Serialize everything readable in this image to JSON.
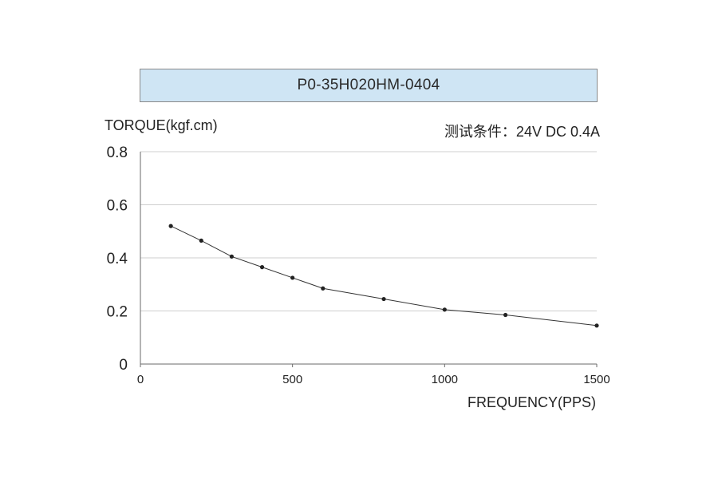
{
  "colors": {
    "title_fill": "#cfe5f4",
    "grid": "#cfcfcf",
    "axis": "#6a6a6a",
    "line": "#333333",
    "marker": "#222222"
  },
  "chart_data": {
    "type": "line",
    "title": "P0-35H020HM-0404",
    "subtitle": "测试条件：24V DC   0.4A",
    "ylabel": "TORQUE(kgf.cm)",
    "xlabel": "FREQUENCY(PPS)",
    "xlim": [
      0,
      1500
    ],
    "ylim": [
      0,
      0.8
    ],
    "xticks": [
      0,
      500,
      1000,
      1500
    ],
    "yticks": [
      0,
      0.2,
      0.4,
      0.6,
      0.8
    ],
    "ytick_labels": [
      "0",
      "0.2",
      "0.4",
      "0.6",
      "0.8"
    ],
    "grid": "horizontal",
    "series": [
      {
        "x": [
          100,
          200,
          300,
          400,
          500,
          600,
          800,
          1000,
          1200,
          1500
        ],
        "y": [
          0.52,
          0.465,
          0.405,
          0.365,
          0.325,
          0.285,
          0.245,
          0.205,
          0.185,
          0.145
        ]
      }
    ]
  }
}
